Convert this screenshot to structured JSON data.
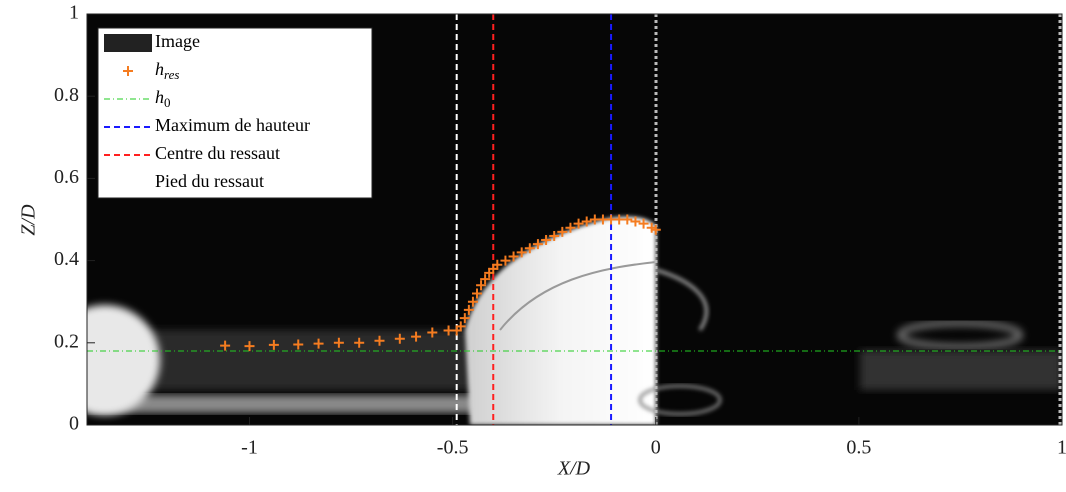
{
  "chart_data": {
    "type": "scatter",
    "xlabel": "X/D",
    "ylabel": "Z/D",
    "xlim": [
      -1.4,
      1
    ],
    "ylim": [
      0,
      1
    ],
    "xticks": [
      -1,
      -0.5,
      0,
      0.5,
      1
    ],
    "yticks": [
      0,
      0.2,
      0.4,
      0.6,
      0.8,
      1
    ],
    "grid": false,
    "legend": "upper left",
    "image": {
      "name": "Image",
      "color": "#222222"
    },
    "series": [
      {
        "name": "h_res",
        "color": "#f57c20",
        "x": [
          -1.06,
          -1.0,
          -0.94,
          -0.88,
          -0.83,
          -0.78,
          -0.73,
          -0.68,
          -0.63,
          -0.59,
          -0.55,
          -0.51,
          -0.49,
          -0.48,
          -0.47,
          -0.46,
          -0.45,
          -0.44,
          -0.43,
          -0.42,
          -0.41,
          -0.4,
          -0.39,
          -0.37,
          -0.35,
          -0.33,
          -0.31,
          -0.29,
          -0.27,
          -0.25,
          -0.23,
          -0.21,
          -0.19,
          -0.17,
          -0.15,
          -0.13,
          -0.11,
          -0.09,
          -0.07,
          -0.05,
          -0.03,
          -0.01,
          0
        ],
        "values": [
          0.193,
          0.192,
          0.195,
          0.196,
          0.198,
          0.2,
          0.2,
          0.205,
          0.21,
          0.215,
          0.225,
          0.23,
          0.23,
          0.24,
          0.26,
          0.28,
          0.3,
          0.32,
          0.34,
          0.355,
          0.37,
          0.38,
          0.39,
          0.4,
          0.41,
          0.42,
          0.43,
          0.44,
          0.45,
          0.46,
          0.47,
          0.48,
          0.49,
          0.495,
          0.5,
          0.5,
          0.5,
          0.5,
          0.5,
          0.495,
          0.49,
          0.48,
          0.475
        ]
      }
    ],
    "hlines": [
      {
        "name": "h_0",
        "color": "#22cc22",
        "y": 0.18
      }
    ],
    "vlines": [
      {
        "name": "Maximum de hauteur",
        "color": "#1a1aff",
        "x": -0.11
      },
      {
        "name": "Centre du ressaut",
        "color": "#ff2020",
        "x": -0.4
      },
      {
        "name": "Pied du ressaut",
        "color": "#ffffff",
        "x": -0.49
      }
    ]
  }
}
